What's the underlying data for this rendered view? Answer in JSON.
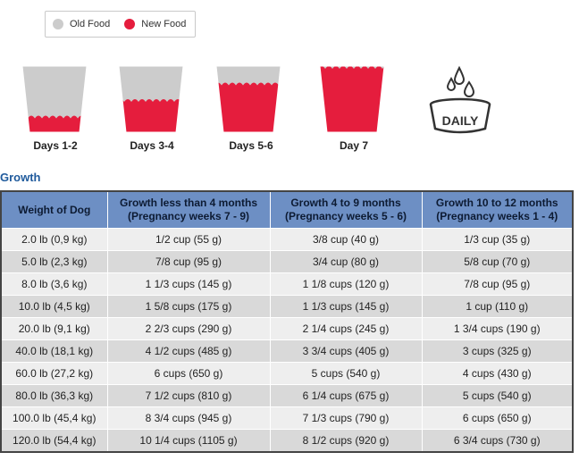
{
  "legend": {
    "old_label": "Old Food",
    "new_label": "New Food",
    "old_color": "#cccccc",
    "new_color": "#e51d3d"
  },
  "transition": [
    {
      "label": "Days 1-2",
      "new_fraction": 0.25
    },
    {
      "label": "Days 3-4",
      "new_fraction": 0.5
    },
    {
      "label": "Days 5-6",
      "new_fraction": 0.75
    },
    {
      "label": "Day 7",
      "new_fraction": 1.0
    }
  ],
  "daily_icon": {
    "name": "daily-bowl-icon",
    "text": "DAILY"
  },
  "section_title": "Growth",
  "table": {
    "headers": [
      "Weight of Dog",
      "Growth less than 4 months (Pregnancy weeks 7 - 9)",
      "Growth 4 to 9 months (Pregnancy weeks 5 - 6)",
      "Growth 10 to 12 months (Pregnancy weeks 1 - 4)"
    ],
    "rows": [
      [
        "2.0 lb (0,9 kg)",
        "1/2 cup (55 g)",
        "3/8 cup (40 g)",
        "1/3 cup (35 g)"
      ],
      [
        "5.0 lb (2,3 kg)",
        "7/8 cup (95 g)",
        "3/4 cup (80 g)",
        "5/8 cup (70 g)"
      ],
      [
        "8.0 lb (3,6 kg)",
        "1 1/3 cups (145 g)",
        "1 1/8 cups (120 g)",
        "7/8 cup (95 g)"
      ],
      [
        "10.0 lb (4,5 kg)",
        "1 5/8 cups (175 g)",
        "1 1/3 cups (145 g)",
        "1 cup (110 g)"
      ],
      [
        "20.0 lb (9,1 kg)",
        "2 2/3 cups (290 g)",
        "2 1/4 cups (245 g)",
        "1 3/4 cups (190 g)"
      ],
      [
        "40.0 lb (18,1 kg)",
        "4 1/2 cups (485 g)",
        "3 3/4 cups (405 g)",
        "3 cups (325 g)"
      ],
      [
        "60.0 lb (27,2 kg)",
        "6 cups (650 g)",
        "5 cups (540 g)",
        "4 cups (430 g)"
      ],
      [
        "80.0 lb (36,3 kg)",
        "7 1/2 cups (810 g)",
        "6 1/4 cups (675 g)",
        "5 cups (540 g)"
      ],
      [
        "100.0 lb (45,4 kg)",
        "8 3/4 cups (945 g)",
        "7 1/3 cups (790 g)",
        "6 cups (650 g)"
      ],
      [
        "120.0 lb (54,4 kg)",
        "10 1/4 cups (1105 g)",
        "8 1/2 cups (920 g)",
        "6 3/4 cups (730 g)"
      ]
    ]
  }
}
